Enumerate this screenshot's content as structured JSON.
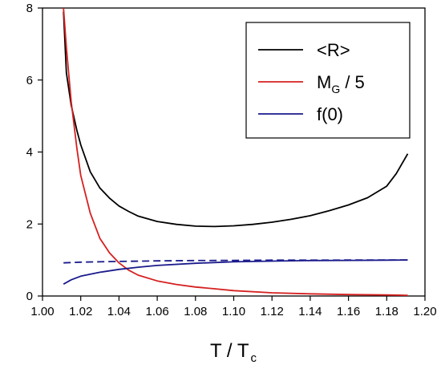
{
  "chart_data": {
    "type": "line",
    "title": "",
    "xlabel": {
      "main": "T / T",
      "sub": "c"
    },
    "ylabel": "",
    "xlim": [
      1.0,
      1.2
    ],
    "ylim": [
      0,
      8
    ],
    "x_ticks": [
      "1.00",
      "1.02",
      "1.04",
      "1.06",
      "1.08",
      "1.10",
      "1.12",
      "1.14",
      "1.16",
      "1.18",
      "1.20"
    ],
    "y_ticks": [
      "0",
      "2",
      "4",
      "6",
      "8"
    ],
    "grid": false,
    "legend_position": "top-right",
    "legend": [
      {
        "label_main": "<R>",
        "label_sub": "",
        "label_tail": "",
        "color": "#000000"
      },
      {
        "label_main": "M",
        "label_sub": "G",
        "label_tail": " / 5",
        "color": "#d62020"
      },
      {
        "label_main": "f(0)",
        "label_sub": "",
        "label_tail": "",
        "color": "#1a1a8c"
      }
    ],
    "series": [
      {
        "color": "#000000",
        "dash": "solid",
        "points": [
          [
            1.011,
            7.9
          ],
          [
            1.0125,
            6.2
          ],
          [
            1.015,
            5.3
          ],
          [
            1.018,
            4.6
          ],
          [
            1.02,
            4.2
          ],
          [
            1.025,
            3.45
          ],
          [
            1.03,
            3.0
          ],
          [
            1.035,
            2.72
          ],
          [
            1.04,
            2.5
          ],
          [
            1.045,
            2.35
          ],
          [
            1.05,
            2.22
          ],
          [
            1.06,
            2.07
          ],
          [
            1.07,
            1.99
          ],
          [
            1.08,
            1.94
          ],
          [
            1.09,
            1.93
          ],
          [
            1.1,
            1.95
          ],
          [
            1.11,
            1.99
          ],
          [
            1.12,
            2.05
          ],
          [
            1.13,
            2.13
          ],
          [
            1.14,
            2.23
          ],
          [
            1.15,
            2.37
          ],
          [
            1.16,
            2.53
          ],
          [
            1.17,
            2.73
          ],
          [
            1.18,
            3.05
          ],
          [
            1.185,
            3.4
          ],
          [
            1.191,
            3.95
          ]
        ]
      },
      {
        "color": "#d62020",
        "dash": "solid",
        "points": [
          [
            1.011,
            8.0
          ],
          [
            1.0125,
            6.9
          ],
          [
            1.015,
            5.4
          ],
          [
            1.018,
            4.1
          ],
          [
            1.02,
            3.35
          ],
          [
            1.025,
            2.3
          ],
          [
            1.03,
            1.6
          ],
          [
            1.035,
            1.2
          ],
          [
            1.04,
            0.92
          ],
          [
            1.045,
            0.72
          ],
          [
            1.05,
            0.58
          ],
          [
            1.06,
            0.42
          ],
          [
            1.07,
            0.32
          ],
          [
            1.08,
            0.25
          ],
          [
            1.09,
            0.2
          ],
          [
            1.1,
            0.15
          ],
          [
            1.12,
            0.09
          ],
          [
            1.14,
            0.06
          ],
          [
            1.16,
            0.04
          ],
          [
            1.18,
            0.03
          ],
          [
            1.191,
            0.02
          ]
        ]
      },
      {
        "color": "#1a1a8c",
        "dash": "solid",
        "points": [
          [
            1.011,
            0.33
          ],
          [
            1.015,
            0.45
          ],
          [
            1.02,
            0.55
          ],
          [
            1.03,
            0.66
          ],
          [
            1.04,
            0.74
          ],
          [
            1.05,
            0.8
          ],
          [
            1.06,
            0.85
          ],
          [
            1.08,
            0.91
          ],
          [
            1.1,
            0.95
          ],
          [
            1.12,
            0.97
          ],
          [
            1.14,
            0.985
          ],
          [
            1.16,
            0.99
          ],
          [
            1.18,
            0.995
          ],
          [
            1.191,
            1.0
          ]
        ]
      },
      {
        "color": "#1a1a8c",
        "dash": "dashed",
        "points": [
          [
            1.011,
            0.92
          ],
          [
            1.02,
            0.94
          ],
          [
            1.04,
            0.96
          ],
          [
            1.06,
            0.975
          ],
          [
            1.08,
            0.985
          ],
          [
            1.1,
            0.99
          ],
          [
            1.12,
            0.995
          ],
          [
            1.14,
            0.997
          ],
          [
            1.16,
            0.999
          ],
          [
            1.191,
            1.0
          ]
        ]
      }
    ]
  }
}
